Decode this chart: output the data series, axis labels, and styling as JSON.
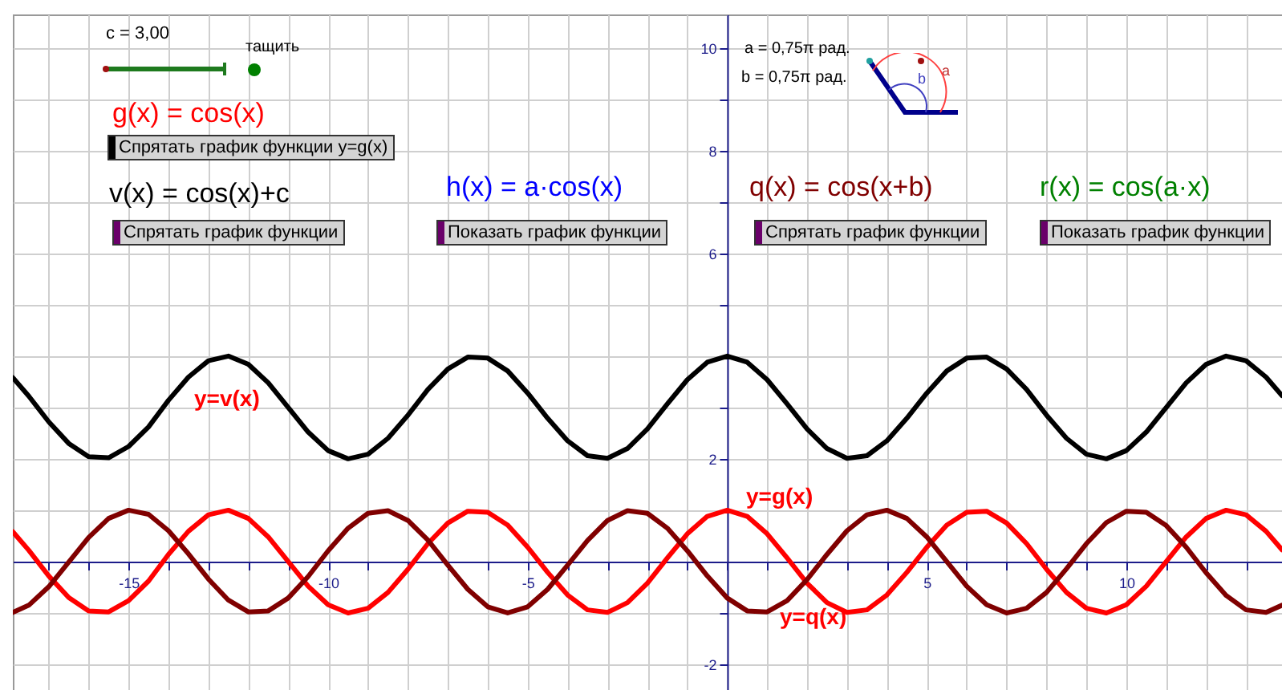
{
  "chart_data": {
    "type": "line",
    "x": [
      -17.9,
      -17.5,
      -17,
      -16.5,
      -16,
      -15.5,
      -15,
      -14.5,
      -14,
      -13.5,
      -13,
      -12.5,
      -12,
      -11.5,
      -11,
      -10.5,
      -10,
      -9.5,
      -9,
      -8.5,
      -8,
      -7.5,
      -7,
      -6.5,
      -6,
      -5.5,
      -5,
      -4.5,
      -4,
      -3.5,
      -3,
      -2.5,
      -2,
      -1.5,
      -1,
      -0.5,
      0,
      0.5,
      1,
      1.5,
      2,
      2.5,
      3,
      3.5,
      4,
      4.5,
      5,
      5.5,
      6,
      6.5,
      7,
      7.5,
      8,
      8.5,
      9,
      9.5,
      10,
      10.5,
      11,
      11.5,
      12,
      12.5,
      13,
      13.5,
      13.9
    ],
    "series": [
      {
        "name": "y=v(x)",
        "color": "#000000",
        "values": [
          3.58,
          3.22,
          2.72,
          2.3,
          2.04,
          2.02,
          2.24,
          2.62,
          3.14,
          3.59,
          3.91,
          4,
          3.84,
          3.48,
          3,
          2.52,
          2.16,
          2,
          2.09,
          2.4,
          2.85,
          3.35,
          3.75,
          3.98,
          3.96,
          3.71,
          3.28,
          2.79,
          2.35,
          2.06,
          2.01,
          2.2,
          2.58,
          3.07,
          3.54,
          3.88,
          4,
          3.88,
          3.54,
          3.07,
          2.58,
          2.2,
          2.01,
          2.06,
          2.35,
          2.79,
          3.28,
          3.71,
          3.96,
          3.98,
          3.75,
          3.35,
          2.85,
          2.4,
          2.09,
          2,
          2.16,
          2.52,
          3,
          3.48,
          3.84,
          4,
          3.91,
          3.59,
          3.23
        ]
      },
      {
        "name": "y=g(x)",
        "color": "#ff0000",
        "values": [
          0.58,
          0.22,
          -0.28,
          -0.7,
          -0.96,
          -0.98,
          -0.76,
          -0.38,
          0.14,
          0.59,
          0.91,
          1,
          0.84,
          0.48,
          0,
          -0.48,
          -0.84,
          -1,
          -0.91,
          -0.6,
          -0.15,
          0.35,
          0.75,
          0.98,
          0.96,
          0.71,
          0.28,
          -0.21,
          -0.65,
          -0.94,
          -0.99,
          -0.8,
          -0.42,
          0.07,
          0.54,
          0.88,
          1,
          0.88,
          0.54,
          0.07,
          -0.42,
          -0.8,
          -0.99,
          -0.94,
          -0.65,
          -0.21,
          0.28,
          0.71,
          0.96,
          0.98,
          0.75,
          0.35,
          -0.15,
          -0.6,
          -0.91,
          -1,
          -0.84,
          -0.48,
          0,
          0.48,
          0.84,
          1,
          0.91,
          0.59,
          0.23
        ]
      },
      {
        "name": "y=q(x)",
        "color": "#800000",
        "values": [
          -0.99,
          -0.85,
          -0.49,
          -0.01,
          0.47,
          0.84,
          1,
          0.92,
          0.6,
          0.15,
          -0.34,
          -0.75,
          -0.98,
          -0.96,
          -0.71,
          -0.29,
          0.21,
          0.65,
          0.94,
          0.99,
          0.8,
          0.42,
          -0.07,
          -0.54,
          -0.88,
          -1,
          -0.88,
          -0.54,
          -0.07,
          0.41,
          0.8,
          0.99,
          0.94,
          0.65,
          0.21,
          -0.28,
          -0.71,
          -0.96,
          -0.98,
          -0.76,
          -0.35,
          0.14,
          0.6,
          0.91,
          1,
          0.84,
          0.48,
          0,
          -0.48,
          -0.84,
          -1,
          -0.91,
          -0.6,
          -0.14,
          0.35,
          0.76,
          0.98,
          0.96,
          0.7,
          0.28,
          -0.22,
          -0.66,
          -0.94,
          -0.99,
          -0.85
        ]
      }
    ],
    "xlim": [
      -17.9,
      13.9
    ],
    "ylim": [
      -2.5,
      10.65
    ],
    "xticks": [
      {
        "value": -17,
        "label": null
      },
      {
        "value": -16,
        "label": null
      },
      -15,
      {
        "value": -14,
        "label": null
      },
      {
        "value": -13,
        "label": null
      },
      {
        "value": -12,
        "label": null
      },
      {
        "value": -11,
        "label": null
      },
      -10,
      {
        "value": -9,
        "label": null
      },
      {
        "value": -8,
        "label": null
      },
      {
        "value": -7,
        "label": null
      },
      {
        "value": -6,
        "label": null
      },
      -5,
      {
        "value": -4,
        "label": null
      },
      {
        "value": -3,
        "label": null
      },
      {
        "value": -2,
        "label": null
      },
      {
        "value": -1,
        "label": null
      },
      {
        "value": 0,
        "label": null
      },
      {
        "value": 1,
        "label": null
      },
      {
        "value": 2,
        "label": null
      },
      {
        "value": 3,
        "label": null
      },
      {
        "value": 4,
        "label": null
      },
      5,
      {
        "value": 6,
        "label": null
      },
      {
        "value": 7,
        "label": null
      },
      {
        "value": 8,
        "label": null
      },
      {
        "value": 9,
        "label": null
      },
      10,
      {
        "value": 11,
        "label": null
      },
      {
        "value": 12,
        "label": null
      },
      {
        "value": 13,
        "label": null
      }
    ],
    "yticks": [
      -2,
      {
        "value": -1,
        "label": null
      },
      {
        "value": 0,
        "label": null
      },
      {
        "value": 1,
        "label": null
      },
      2,
      {
        "value": 3,
        "label": null
      },
      {
        "value": 4,
        "label": null
      },
      {
        "value": 5,
        "label": null
      },
      6,
      {
        "value": 7,
        "label": null
      },
      8,
      {
        "value": 9,
        "label": null
      },
      10
    ],
    "grid": true,
    "annotations": [
      "c = 3,00",
      "тащить",
      "g(x) = cos(x)",
      "Спрятать график функции y=g(x)",
      "v(x) = cos(x)+c",
      "Спрятать график функции",
      "h(x) = a·cos(x)",
      "Показать график функции",
      "q(x) = cos(x+b)",
      "Спрятать график функции",
      "r(x) = cos(a·x)",
      "Показать график функции",
      "a = 0,75π рад.",
      "b = 0,75π рад.",
      "b",
      "a"
    ]
  }
}
